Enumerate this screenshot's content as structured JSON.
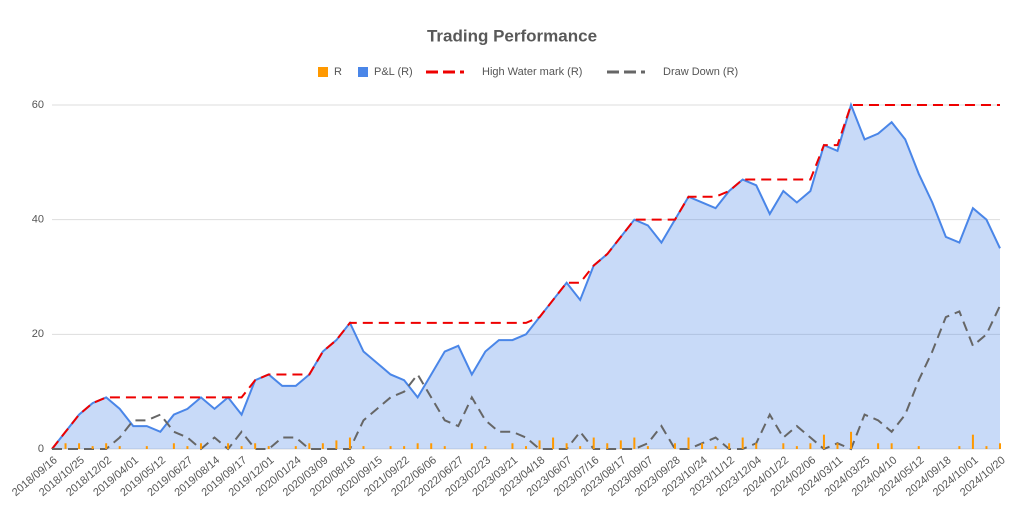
{
  "chart_data": {
    "type": "combo",
    "title": "Trading Performance",
    "categories": [
      "2018/09/16",
      null,
      "2018/10/25",
      null,
      "2018/12/02",
      null,
      "2019/04/01",
      null,
      "2019/05/12",
      null,
      "2019/06/27",
      null,
      "2019/08/14",
      null,
      "2019/09/17",
      null,
      "2019/12/01",
      null,
      "2020/01/24",
      null,
      "2020/03/09",
      null,
      "2020/08/18",
      null,
      "2020/09/15",
      null,
      "2021/09/22",
      null,
      "2022/06/06",
      null,
      "2022/06/27",
      null,
      "2023/02/23",
      null,
      "2023/03/21",
      null,
      "2023/04/18",
      null,
      "2023/06/07",
      null,
      "2023/07/16",
      null,
      "2023/08/17",
      null,
      "2023/09/07",
      null,
      "2023/09/28",
      null,
      "2023/10/24",
      null,
      "2023/11/12",
      null,
      "2023/12/04",
      null,
      "2024/01/22",
      null,
      "2024/02/06",
      null,
      "2024/03/11",
      null,
      "2024/03/25",
      null,
      "2024/04/10",
      null,
      "2024/05/12",
      null,
      "2024/09/18",
      null,
      "2024/10/01",
      null,
      "2024/10/20"
    ],
    "series": [
      {
        "name": "R",
        "kind": "bar",
        "color": "#ff9900",
        "values": [
          0,
          1,
          1,
          0.5,
          1,
          0.5,
          0,
          0.5,
          0,
          1,
          0.5,
          1,
          0,
          1,
          0.5,
          1,
          0.5,
          0,
          0.5,
          1,
          1,
          1.5,
          2,
          0.5,
          0,
          0.5,
          0.5,
          1,
          1,
          0.5,
          0,
          1,
          0.5,
          0,
          1,
          0.5,
          1.5,
          2,
          1,
          0.5,
          2,
          1,
          1.5,
          2,
          0.5,
          0,
          1,
          2,
          1,
          0.5,
          1,
          2,
          1,
          0,
          1,
          0.5,
          1,
          2.5,
          1,
          3,
          0,
          1,
          1,
          0,
          0.5,
          0,
          0,
          0.5,
          2.5,
          0.5,
          1
        ]
      },
      {
        "name": "P&L (R)",
        "kind": "area",
        "color": "#4a86e8",
        "values": [
          0,
          3,
          6,
          8,
          9,
          7,
          4,
          4,
          3,
          6,
          7,
          9,
          7,
          9,
          6,
          12,
          13,
          11,
          11,
          13,
          17,
          19,
          22,
          17,
          15,
          13,
          12,
          9,
          13,
          17,
          18,
          13,
          17,
          19,
          19,
          20,
          23,
          26,
          29,
          26,
          32,
          34,
          37,
          40,
          39,
          36,
          40,
          44,
          43,
          42,
          45,
          47,
          46,
          41,
          45,
          43,
          45,
          53,
          52,
          60,
          54,
          55,
          57,
          54,
          48,
          43,
          37,
          36,
          42,
          40,
          35
        ]
      },
      {
        "name": "High Water mark (R)",
        "kind": "dashed",
        "color": "#ee0000",
        "values": [
          0,
          3,
          6,
          8,
          9,
          9,
          9,
          9,
          9,
          9,
          9,
          9,
          9,
          9,
          9,
          12,
          13,
          13,
          13,
          13,
          17,
          19,
          22,
          22,
          22,
          22,
          22,
          22,
          22,
          22,
          22,
          22,
          22,
          22,
          22,
          22,
          23,
          26,
          29,
          29,
          32,
          34,
          37,
          40,
          40,
          40,
          40,
          44,
          44,
          44,
          45,
          47,
          47,
          47,
          47,
          47,
          47,
          53,
          53,
          60,
          60,
          60,
          60,
          60,
          60,
          60,
          60,
          60,
          60,
          60,
          60
        ]
      },
      {
        "name": "Draw Down (R)",
        "kind": "dashed",
        "color": "#666666",
        "values": [
          0,
          0,
          0,
          0,
          0,
          2,
          5,
          5,
          6,
          3,
          2,
          0,
          2,
          0,
          3,
          0,
          0,
          2,
          2,
          0,
          0,
          0,
          0,
          5,
          7,
          9,
          10,
          13,
          9,
          5,
          4,
          9,
          5,
          3,
          3,
          2,
          0,
          0,
          0,
          3,
          0,
          0,
          0,
          0,
          1,
          4,
          0,
          0,
          1,
          2,
          0,
          0,
          1,
          6,
          2,
          4,
          2,
          0,
          1,
          0,
          6,
          5,
          3,
          6,
          12,
          17,
          23,
          24,
          18,
          20,
          25
        ]
      }
    ],
    "ylim": [
      0,
      60
    ],
    "yticks": [
      0,
      20,
      40,
      60
    ],
    "grid": true
  }
}
